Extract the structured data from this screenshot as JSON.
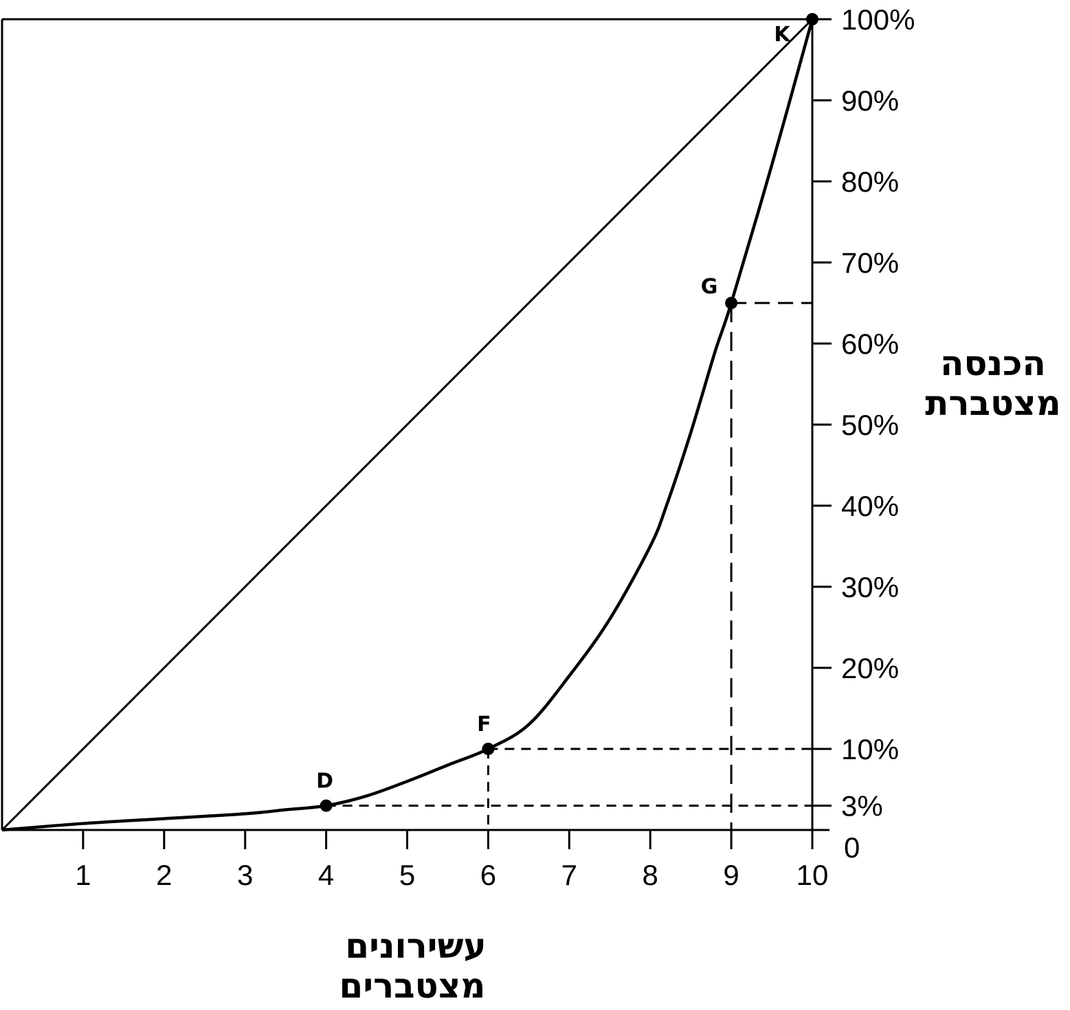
{
  "chart_data": {
    "type": "line",
    "x_axis": {
      "title_line1": "עשירונים",
      "title_line2": "מצטברים",
      "ticks": [
        1,
        2,
        3,
        4,
        5,
        6,
        7,
        8,
        9,
        10
      ],
      "tick_labels": [
        "1",
        "2",
        "3",
        "4",
        "5",
        "6",
        "7",
        "8",
        "9",
        "10"
      ],
      "range": [
        0,
        10
      ]
    },
    "y_axis": {
      "title_line1": "הכנסה",
      "title_line2": "מצטברת",
      "ticks": [
        0,
        3,
        10,
        20,
        30,
        40,
        50,
        60,
        70,
        80,
        90,
        100
      ],
      "tick_labels": [
        "0",
        "3%",
        "10%",
        "20%",
        "30%",
        "40%",
        "50%",
        "60%",
        "70%",
        "80%",
        "90%",
        "100%"
      ],
      "range": [
        0,
        100
      ],
      "position": "right"
    },
    "series": [
      {
        "kind": "equality-line",
        "x": [
          0,
          10
        ],
        "y": [
          0,
          100
        ]
      },
      {
        "kind": "lorenz-curve",
        "x": [
          0,
          1,
          2,
          3,
          3.5,
          4,
          4.5,
          5,
          5.5,
          6,
          6.5,
          7,
          7.5,
          8,
          8.2,
          8.5,
          8.8,
          9,
          9.5,
          10
        ],
        "y": [
          0,
          0.8,
          1.4,
          2,
          2.5,
          3,
          4.2,
          6,
          8,
          10,
          13,
          19,
          26,
          35,
          40,
          49,
          59,
          65,
          82,
          100
        ]
      }
    ],
    "points": [
      {
        "label": "D",
        "x": 4,
        "y": 3
      },
      {
        "label": "F",
        "x": 6,
        "y": 10
      },
      {
        "label": "G",
        "x": 9,
        "y": 65
      },
      {
        "label": "K",
        "x": 10,
        "y": 100
      }
    ],
    "guides": [
      {
        "x": 4,
        "y": 3,
        "vertical": false
      },
      {
        "x": 6,
        "y": 10,
        "vertical": true
      },
      {
        "x": 9,
        "y": 65,
        "vertical": true
      }
    ],
    "grid": false,
    "frame": true
  }
}
